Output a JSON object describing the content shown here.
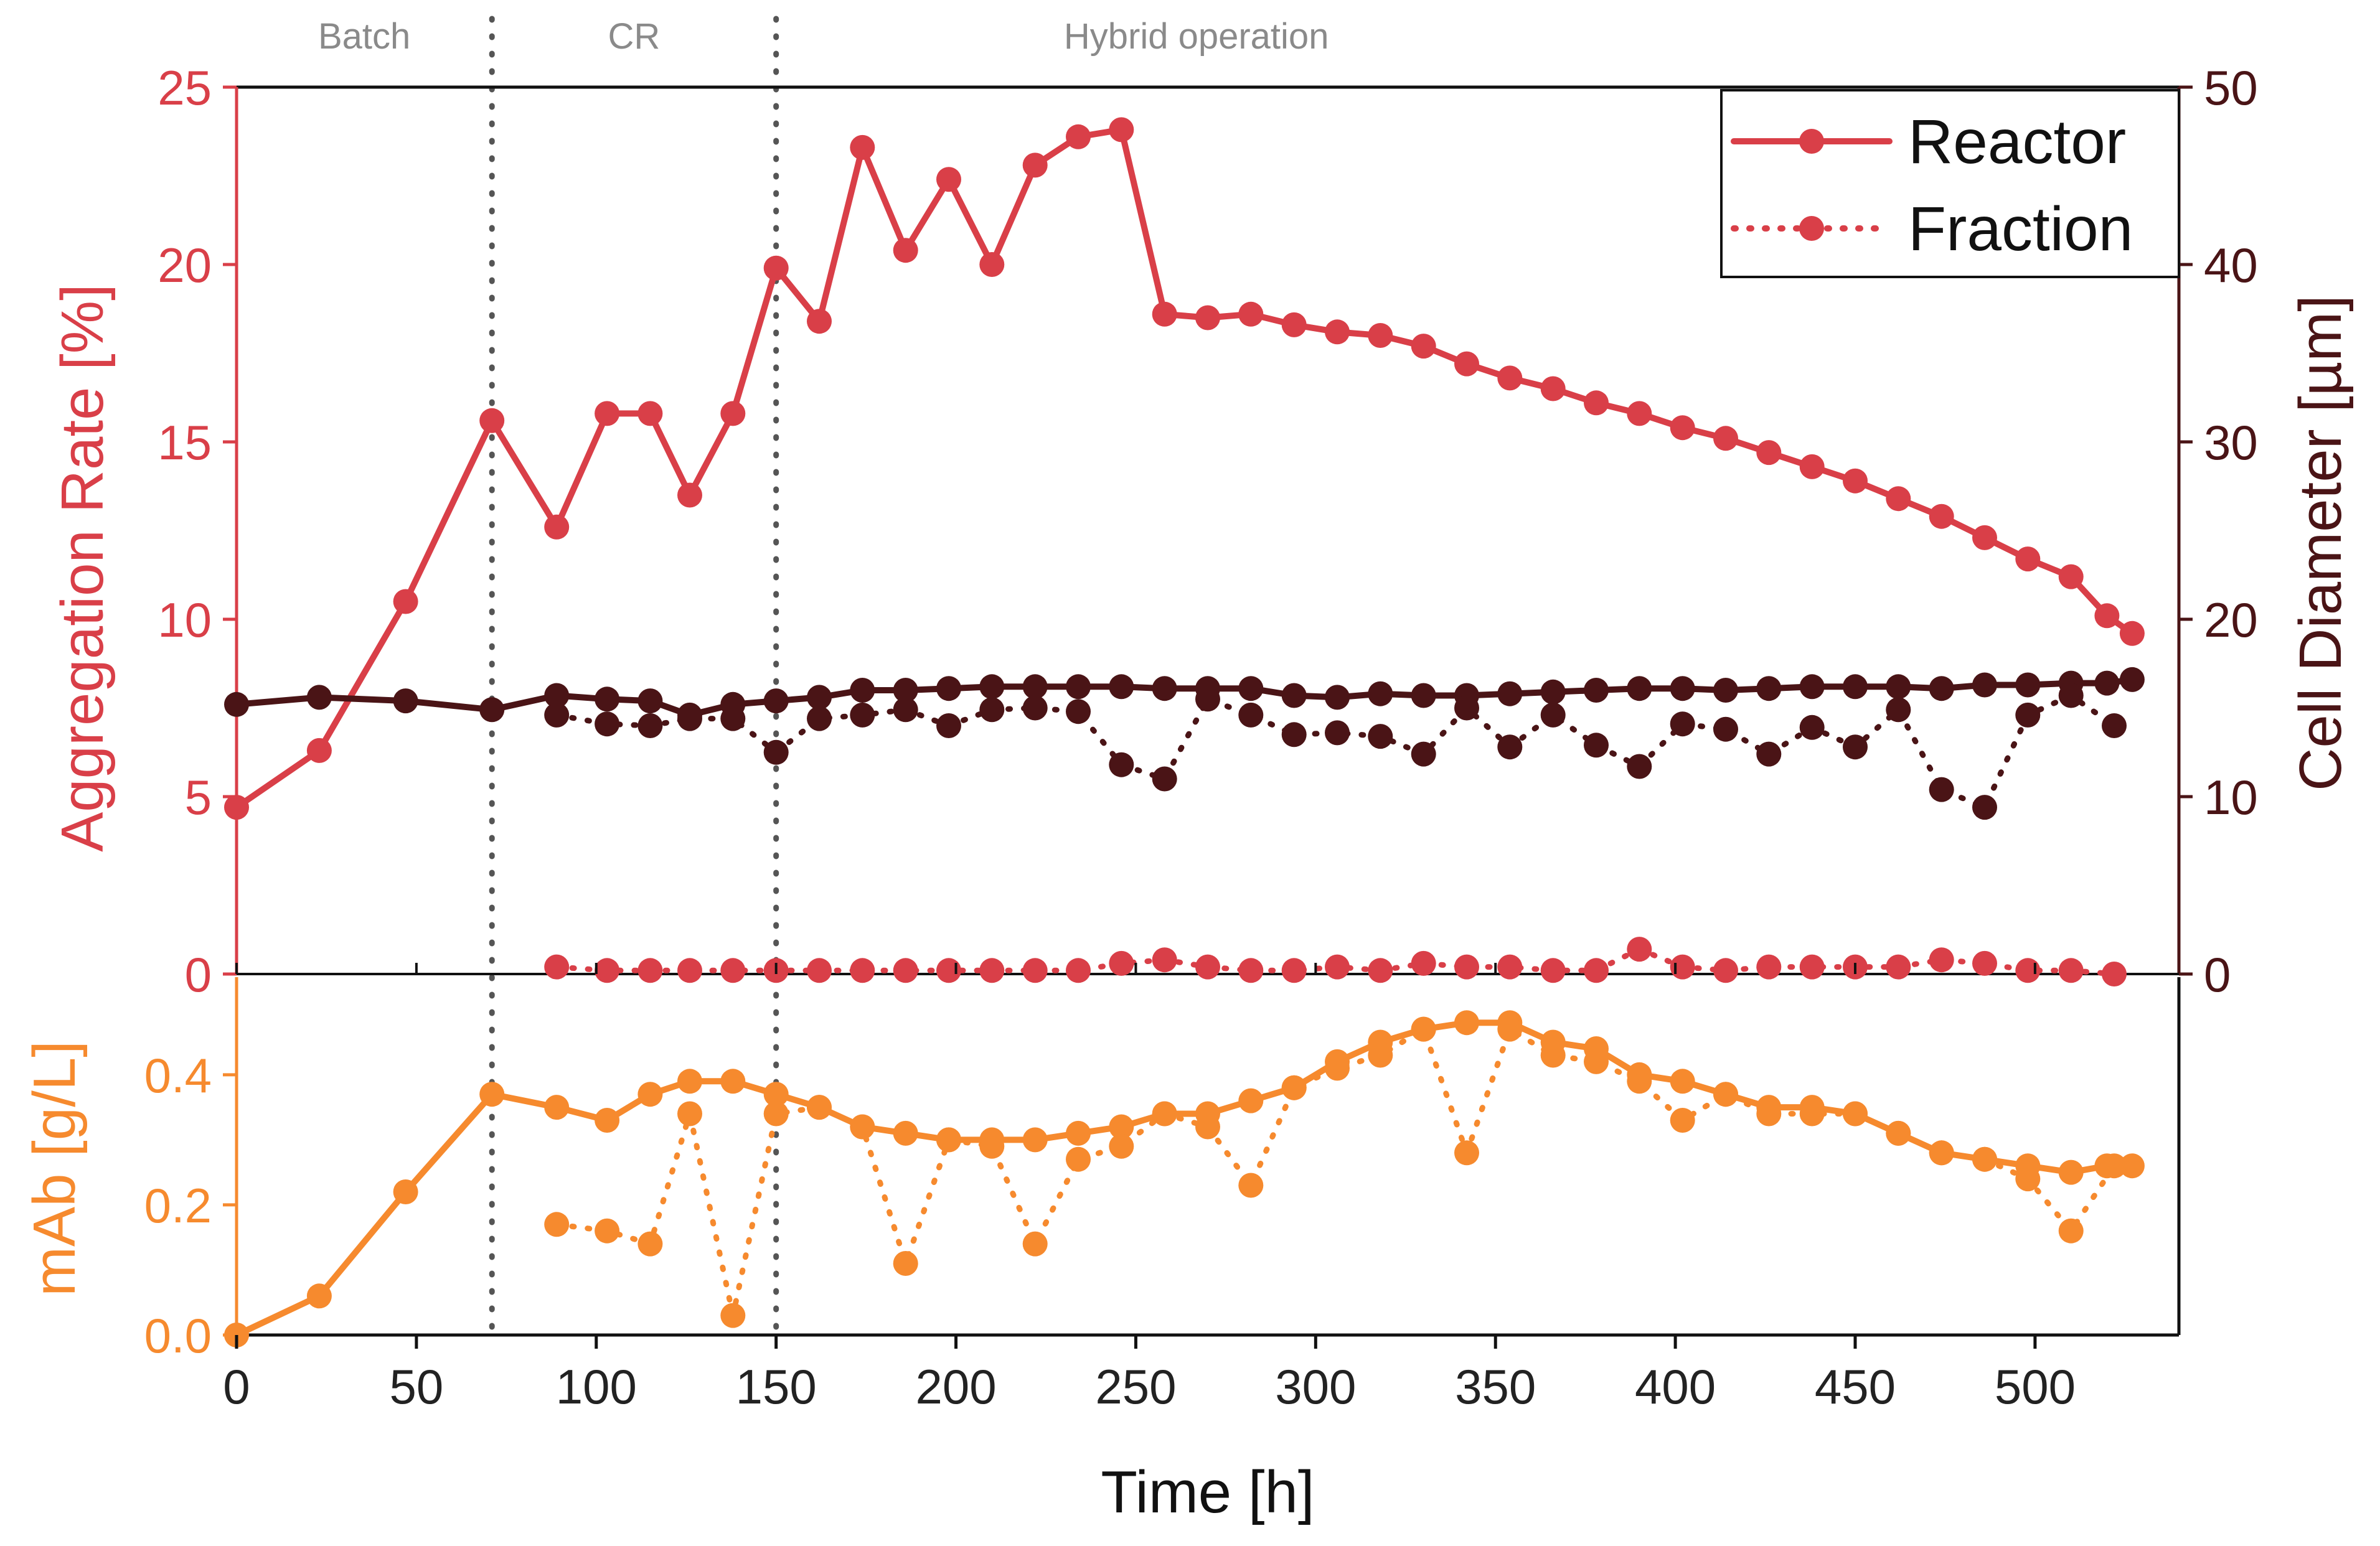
{
  "chart_data": {
    "type": "line",
    "xlabel": "Time [h]",
    "xlim": [
      0,
      540
    ],
    "xticks": [
      0,
      50,
      100,
      150,
      200,
      250,
      300,
      350,
      400,
      450,
      500
    ],
    "phases": [
      {
        "label": "Batch",
        "start": 0,
        "end": 71
      },
      {
        "label": "CR",
        "start": 71,
        "end": 150
      },
      {
        "label": "Hybrid operation",
        "start": 150,
        "end": 540
      }
    ],
    "phase_boundaries": [
      71,
      150
    ],
    "colors": {
      "reactor": "#d93f48",
      "diameter": "#4a1416",
      "mab": "#f68a2e",
      "vline": "#555555",
      "axis": "#111111"
    },
    "legend": {
      "position": "top-right",
      "entries": [
        {
          "label": "Reactor",
          "style": "solid"
        },
        {
          "label": "Fraction",
          "style": "dotted"
        }
      ]
    },
    "top_panel": {
      "ylabel_left": "Aggregation Rate [%]",
      "ylabel_right": "Cell Diameter [µm]",
      "ylim_left": [
        0,
        25
      ],
      "ylim_right": [
        0,
        50
      ],
      "yticks_left": [
        0,
        5,
        10,
        15,
        20,
        25
      ],
      "yticks_right": [
        0,
        10,
        20,
        30,
        40,
        50
      ],
      "series": [
        {
          "name": "Aggregation Rate Reactor",
          "axis": "left",
          "color_key": "reactor",
          "style": "solid",
          "points": [
            [
              0,
              4.7
            ],
            [
              23,
              6.3
            ],
            [
              47,
              10.5
            ],
            [
              71,
              15.6
            ],
            [
              89,
              12.6
            ],
            [
              103,
              15.8
            ],
            [
              115,
              15.8
            ],
            [
              126,
              13.5
            ],
            [
              138,
              15.8
            ],
            [
              150,
              19.9
            ],
            [
              162,
              18.4
            ],
            [
              174,
              23.3
            ],
            [
              186,
              20.4
            ],
            [
              198,
              22.4
            ],
            [
              210,
              20.0
            ],
            [
              222,
              22.8
            ],
            [
              234,
              23.6
            ],
            [
              246,
              23.8
            ],
            [
              258,
              18.6
            ],
            [
              270,
              18.5
            ],
            [
              282,
              18.6
            ],
            [
              294,
              18.3
            ],
            [
              306,
              18.1
            ],
            [
              318,
              18.0
            ],
            [
              330,
              17.7
            ],
            [
              342,
              17.2
            ],
            [
              354,
              16.8
            ],
            [
              366,
              16.5
            ],
            [
              378,
              16.1
            ],
            [
              390,
              15.8
            ],
            [
              402,
              15.4
            ],
            [
              414,
              15.1
            ],
            [
              426,
              14.7
            ],
            [
              438,
              14.3
            ],
            [
              450,
              13.9
            ],
            [
              462,
              13.4
            ],
            [
              474,
              12.9
            ],
            [
              486,
              12.3
            ],
            [
              498,
              11.7
            ],
            [
              510,
              11.2
            ],
            [
              520,
              10.1
            ],
            [
              527,
              9.6
            ]
          ]
        },
        {
          "name": "Aggregation Rate Fraction",
          "axis": "left",
          "color_key": "reactor",
          "style": "dotted",
          "points": [
            [
              89,
              0.2
            ],
            [
              103,
              0.1
            ],
            [
              115,
              0.1
            ],
            [
              126,
              0.1
            ],
            [
              138,
              0.1
            ],
            [
              150,
              0.1
            ],
            [
              162,
              0.1
            ],
            [
              174,
              0.1
            ],
            [
              186,
              0.1
            ],
            [
              198,
              0.1
            ],
            [
              210,
              0.1
            ],
            [
              222,
              0.1
            ],
            [
              234,
              0.1
            ],
            [
              246,
              0.3
            ],
            [
              258,
              0.4
            ],
            [
              270,
              0.2
            ],
            [
              282,
              0.1
            ],
            [
              294,
              0.1
            ],
            [
              306,
              0.2
            ],
            [
              318,
              0.1
            ],
            [
              330,
              0.3
            ],
            [
              342,
              0.2
            ],
            [
              354,
              0.2
            ],
            [
              366,
              0.1
            ],
            [
              378,
              0.1
            ],
            [
              390,
              0.7
            ],
            [
              402,
              0.2
            ],
            [
              414,
              0.1
            ],
            [
              426,
              0.2
            ],
            [
              438,
              0.2
            ],
            [
              450,
              0.2
            ],
            [
              462,
              0.2
            ],
            [
              474,
              0.4
            ],
            [
              486,
              0.3
            ],
            [
              498,
              0.1
            ],
            [
              510,
              0.1
            ],
            [
              522,
              0.0
            ]
          ]
        },
        {
          "name": "Cell Diameter Reactor",
          "axis": "right",
          "color_key": "diameter",
          "style": "solid",
          "points": [
            [
              0,
              15.2
            ],
            [
              23,
              15.6
            ],
            [
              47,
              15.4
            ],
            [
              71,
              14.9
            ],
            [
              89,
              15.7
            ],
            [
              103,
              15.5
            ],
            [
              115,
              15.4
            ],
            [
              126,
              14.6
            ],
            [
              138,
              15.2
            ],
            [
              150,
              15.4
            ],
            [
              162,
              15.6
            ],
            [
              174,
              16.0
            ],
            [
              186,
              16.0
            ],
            [
              198,
              16.1
            ],
            [
              210,
              16.2
            ],
            [
              222,
              16.2
            ],
            [
              234,
              16.2
            ],
            [
              246,
              16.2
            ],
            [
              258,
              16.1
            ],
            [
              270,
              16.1
            ],
            [
              282,
              16.1
            ],
            [
              294,
              15.7
            ],
            [
              306,
              15.6
            ],
            [
              318,
              15.8
            ],
            [
              330,
              15.7
            ],
            [
              342,
              15.7
            ],
            [
              354,
              15.8
            ],
            [
              366,
              15.9
            ],
            [
              378,
              16.0
            ],
            [
              390,
              16.1
            ],
            [
              402,
              16.1
            ],
            [
              414,
              16.0
            ],
            [
              426,
              16.1
            ],
            [
              438,
              16.2
            ],
            [
              450,
              16.2
            ],
            [
              462,
              16.2
            ],
            [
              474,
              16.1
            ],
            [
              486,
              16.3
            ],
            [
              498,
              16.3
            ],
            [
              510,
              16.4
            ],
            [
              520,
              16.4
            ],
            [
              527,
              16.6
            ]
          ]
        },
        {
          "name": "Cell Diameter Fraction",
          "axis": "right",
          "color_key": "diameter",
          "style": "dotted",
          "points": [
            [
              89,
              14.6
            ],
            [
              103,
              14.1
            ],
            [
              115,
              14.0
            ],
            [
              126,
              14.4
            ],
            [
              138,
              14.4
            ],
            [
              150,
              12.5
            ],
            [
              162,
              14.4
            ],
            [
              174,
              14.6
            ],
            [
              186,
              14.9
            ],
            [
              198,
              14.0
            ],
            [
              210,
              14.9
            ],
            [
              222,
              15.0
            ],
            [
              234,
              14.8
            ],
            [
              246,
              11.8
            ],
            [
              258,
              11.0
            ],
            [
              270,
              15.5
            ],
            [
              282,
              14.6
            ],
            [
              294,
              13.5
            ],
            [
              306,
              13.6
            ],
            [
              318,
              13.4
            ],
            [
              330,
              12.4
            ],
            [
              342,
              15.0
            ],
            [
              354,
              12.8
            ],
            [
              366,
              14.6
            ],
            [
              378,
              12.9
            ],
            [
              390,
              11.7
            ],
            [
              402,
              14.1
            ],
            [
              414,
              13.8
            ],
            [
              426,
              12.4
            ],
            [
              438,
              13.9
            ],
            [
              450,
              12.8
            ],
            [
              462,
              14.9
            ],
            [
              474,
              10.4
            ],
            [
              486,
              9.4
            ],
            [
              498,
              14.6
            ],
            [
              510,
              15.7
            ],
            [
              522,
              14.0
            ]
          ]
        }
      ]
    },
    "bottom_panel": {
      "ylabel": "mAb [g/L]",
      "ylim": [
        0,
        0.55
      ],
      "yticks": [
        "0.0",
        "0.2",
        "0.4"
      ],
      "series": [
        {
          "name": "mAb Reactor",
          "color_key": "mab",
          "style": "solid",
          "points": [
            [
              0,
              0.0
            ],
            [
              23,
              0.06
            ],
            [
              47,
              0.22
            ],
            [
              71,
              0.37
            ],
            [
              89,
              0.35
            ],
            [
              103,
              0.33
            ],
            [
              115,
              0.37
            ],
            [
              126,
              0.39
            ],
            [
              138,
              0.39
            ],
            [
              150,
              0.37
            ],
            [
              162,
              0.35
            ],
            [
              174,
              0.32
            ],
            [
              186,
              0.31
            ],
            [
              198,
              0.3
            ],
            [
              210,
              0.3
            ],
            [
              222,
              0.3
            ],
            [
              234,
              0.31
            ],
            [
              246,
              0.32
            ],
            [
              258,
              0.34
            ],
            [
              270,
              0.34
            ],
            [
              282,
              0.36
            ],
            [
              294,
              0.38
            ],
            [
              306,
              0.42
            ],
            [
              318,
              0.45
            ],
            [
              330,
              0.47
            ],
            [
              342,
              0.48
            ],
            [
              354,
              0.48
            ],
            [
              366,
              0.45
            ],
            [
              378,
              0.44
            ],
            [
              390,
              0.4
            ],
            [
              402,
              0.39
            ],
            [
              414,
              0.37
            ],
            [
              426,
              0.35
            ],
            [
              438,
              0.35
            ],
            [
              450,
              0.34
            ],
            [
              462,
              0.31
            ],
            [
              474,
              0.28
            ],
            [
              486,
              0.27
            ],
            [
              498,
              0.26
            ],
            [
              510,
              0.25
            ],
            [
              520,
              0.26
            ],
            [
              527,
              0.26
            ]
          ]
        },
        {
          "name": "mAb Fraction",
          "color_key": "mab",
          "style": "dotted",
          "points": [
            [
              89,
              0.17
            ],
            [
              103,
              0.16
            ],
            [
              115,
              0.14
            ],
            [
              126,
              0.34
            ],
            [
              138,
              0.03
            ],
            [
              150,
              0.34
            ],
            [
              162,
              0.35
            ],
            [
              174,
              0.32
            ],
            [
              186,
              0.11
            ],
            [
              198,
              0.3
            ],
            [
              210,
              0.29
            ],
            [
              222,
              0.14
            ],
            [
              234,
              0.27
            ],
            [
              246,
              0.29
            ],
            [
              258,
              0.34
            ],
            [
              270,
              0.32
            ],
            [
              282,
              0.23
            ],
            [
              294,
              0.38
            ],
            [
              306,
              0.41
            ],
            [
              318,
              0.43
            ],
            [
              330,
              0.47
            ],
            [
              342,
              0.28
            ],
            [
              354,
              0.47
            ],
            [
              366,
              0.43
            ],
            [
              378,
              0.42
            ],
            [
              390,
              0.39
            ],
            [
              402,
              0.33
            ],
            [
              414,
              0.37
            ],
            [
              426,
              0.34
            ],
            [
              438,
              0.34
            ],
            [
              450,
              0.34
            ],
            [
              462,
              0.31
            ],
            [
              474,
              0.28
            ],
            [
              486,
              0.27
            ],
            [
              498,
              0.24
            ],
            [
              510,
              0.16
            ],
            [
              522,
              0.26
            ]
          ]
        }
      ]
    }
  }
}
